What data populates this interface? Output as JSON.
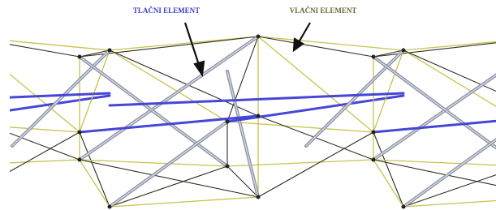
{
  "labels": {
    "compression": "TLAČNI ELEMENT",
    "tension": "VLAČNI ELEMENT"
  }
}
